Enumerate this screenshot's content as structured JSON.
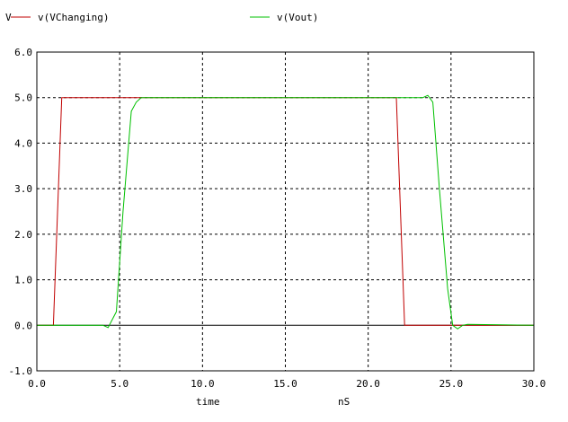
{
  "chart_data": {
    "type": "line",
    "ylabel": "V",
    "xlabel": "time",
    "x_unit": "nS",
    "xlim": [
      0,
      30
    ],
    "ylim": [
      -1,
      6
    ],
    "x_ticks": [
      0,
      5,
      10,
      15,
      20,
      25,
      30
    ],
    "x_tick_labels": [
      "0.0",
      "5.0",
      "10.0",
      "15.0",
      "20.0",
      "25.0",
      "30.0"
    ],
    "y_ticks": [
      -1,
      0,
      1,
      2,
      3,
      4,
      5,
      6
    ],
    "y_tick_labels": [
      "-1.0",
      "0.0",
      "1.0",
      "2.0",
      "3.0",
      "4.0",
      "5.0",
      "6.0"
    ],
    "grid": true,
    "legend_position": "top",
    "series": [
      {
        "name": "v(VChanging)",
        "color": "#c00000",
        "x": [
          0,
          1.0,
          1.5,
          21.7,
          22.2,
          30
        ],
        "y": [
          0,
          0,
          5,
          5,
          0,
          0
        ]
      },
      {
        "name": "v(Vout)",
        "color": "#00c000",
        "x": [
          0,
          4.0,
          4.3,
          4.8,
          5.2,
          5.7,
          6.0,
          6.3,
          22.5,
          23.3,
          23.6,
          23.9,
          24.3,
          24.8,
          25.1,
          25.4,
          25.7,
          26.0,
          30
        ],
        "y": [
          0,
          0,
          -0.05,
          0.3,
          2.5,
          4.7,
          4.9,
          5.0,
          5.0,
          5.0,
          5.05,
          4.9,
          3.0,
          0.8,
          0,
          -0.08,
          0.0,
          0.02,
          0
        ]
      }
    ]
  }
}
